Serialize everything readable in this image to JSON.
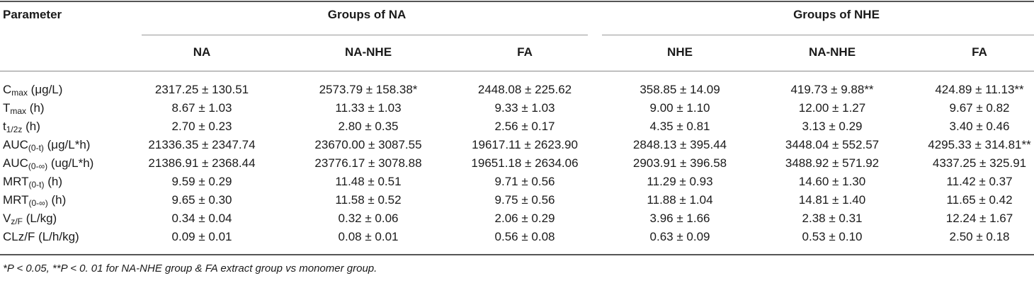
{
  "header": {
    "parameter_label": "Parameter",
    "groups": [
      {
        "label": "Groups of NA",
        "columns": [
          "NA",
          "NA-NHE",
          "FA"
        ]
      },
      {
        "label": "Groups of NHE",
        "columns": [
          "NHE",
          "NA-NHE",
          "FA"
        ]
      }
    ]
  },
  "rows": [
    {
      "param": "C",
      "sub": "max",
      "unit": " (μg/L)",
      "values": [
        "2317.25 ± 130.51",
        "2573.79 ± 158.38*",
        "2448.08 ± 225.62",
        "358.85 ± 14.09",
        "419.73 ± 9.88**",
        "424.89 ± 11.13**"
      ]
    },
    {
      "param": "T",
      "sub": "max",
      "unit": " (h)",
      "values": [
        "8.67 ± 1.03",
        "11.33 ± 1.03",
        "9.33 ± 1.03",
        "9.00 ± 1.10",
        "12.00 ± 1.27",
        "9.67 ± 0.82"
      ]
    },
    {
      "param": "t",
      "sub": "1/2z",
      "unit": " (h)",
      "values": [
        "2.70 ± 0.23",
        "2.80 ± 0.35",
        "2.56 ± 0.17",
        "4.35 ± 0.81",
        "3.13 ± 0.29",
        "3.40 ± 0.46"
      ]
    },
    {
      "param": "AUC",
      "sub": "(0-t)",
      "unit": " (μg/L*h)",
      "values": [
        "21336.35 ± 2347.74",
        "23670.00 ± 3087.55",
        "19617.11 ± 2623.90",
        "2848.13 ± 395.44",
        "3448.04 ± 552.57",
        "4295.33 ± 314.81**"
      ]
    },
    {
      "param": "AUC",
      "sub": "(0-∞)",
      "unit": " (ug/L*h)",
      "values": [
        "21386.91 ± 2368.44",
        "23776.17 ± 3078.88",
        "19651.18 ± 2634.06",
        "2903.91 ± 396.58",
        "3488.92 ± 571.92",
        "4337.25 ± 325.91"
      ]
    },
    {
      "param": "MRT",
      "sub": "(0-t)",
      "unit": " (h)",
      "values": [
        "9.59 ± 0.29",
        "11.48 ± 0.51",
        "9.71 ± 0.56",
        "11.29 ± 0.93",
        "14.60 ± 1.30",
        "11.42 ± 0.37"
      ]
    },
    {
      "param": "MRT",
      "sub": "(0-∞)",
      "unit": " (h)",
      "values": [
        "9.65 ± 0.30",
        "11.58 ± 0.52",
        "9.75 ± 0.56",
        "11.88 ± 1.04",
        "14.81 ± 1.40",
        "11.65 ± 0.42"
      ]
    },
    {
      "param": "V",
      "sub": "z/F",
      "unit": " (L/kg)",
      "values": [
        "0.34 ± 0.04",
        "0.32 ± 0.06",
        "2.06 ± 0.29",
        "3.96 ± 1.66",
        "2.38 ± 0.31",
        "12.24 ± 1.67"
      ]
    },
    {
      "param": "CLz/F",
      "sub": "",
      "unit": " (L/h/kg)",
      "values": [
        "0.09 ± 0.01",
        "0.08 ± 0.01",
        "0.56 ± 0.08",
        "0.63 ± 0.09",
        "0.53 ± 0.10",
        "2.50 ± 0.18"
      ]
    }
  ],
  "footnote": "*P < 0.05, **P < 0. 01 for NA-NHE group & FA extract group vs monomer group."
}
